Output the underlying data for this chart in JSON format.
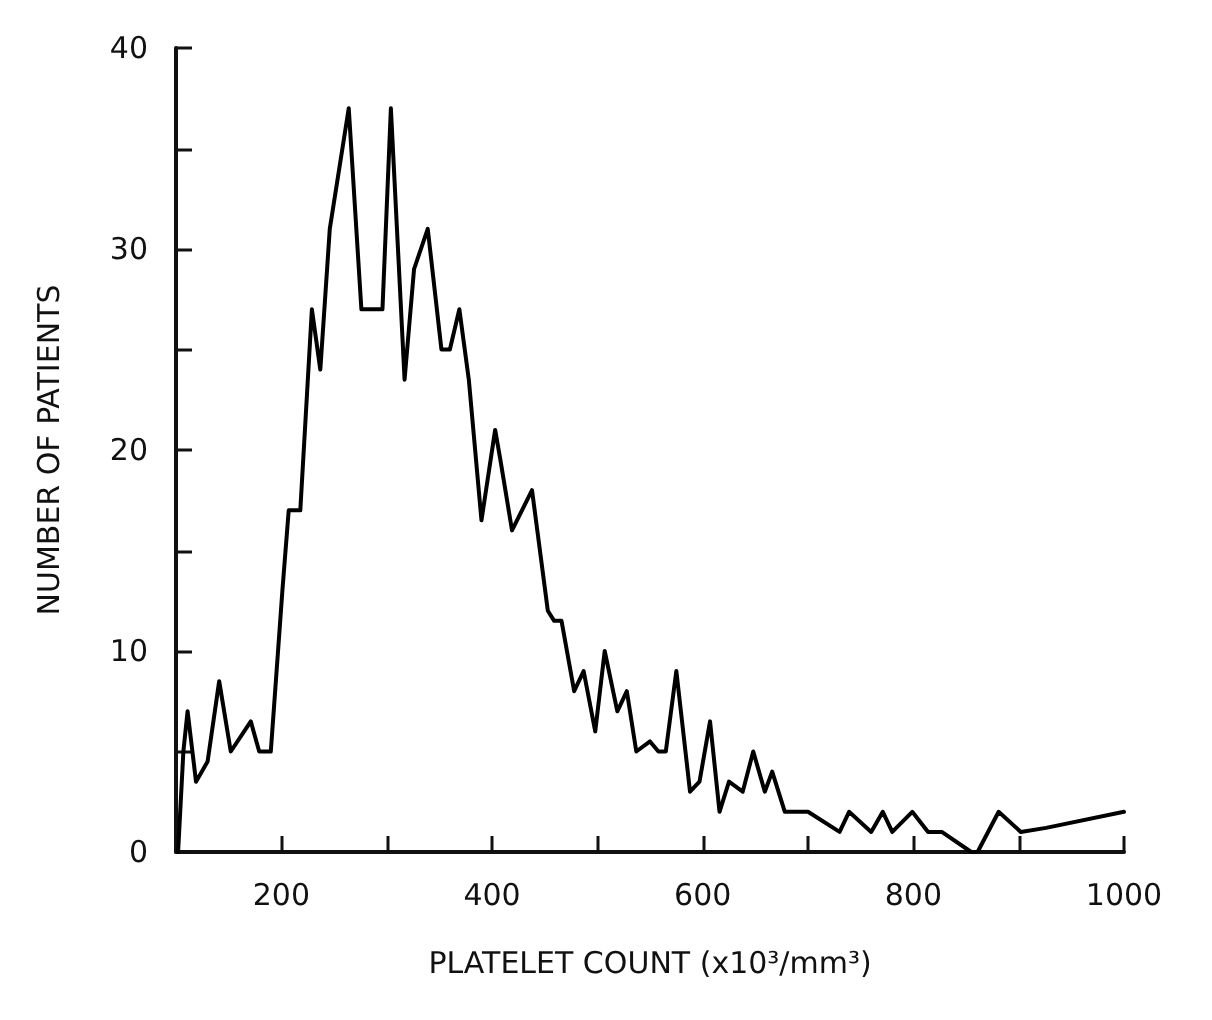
{
  "chart_data": {
    "type": "line",
    "xlabel": "PLATELET COUNT (x10³/mm³)",
    "ylabel": "NUMBER OF PATIENTS",
    "x": [
      102,
      107,
      111,
      119,
      130,
      141,
      152,
      171,
      179,
      190,
      201,
      207,
      218,
      229,
      237,
      246,
      264,
      276,
      296,
      304,
      317,
      326,
      339,
      352,
      360,
      369,
      378,
      390,
      403,
      408,
      419,
      438,
      453,
      459,
      466,
      478,
      487,
      498,
      507,
      519,
      528,
      537,
      550,
      558,
      565,
      575,
      588,
      597,
      607,
      616,
      625,
      638,
      648,
      659,
      666,
      678,
      700,
      730,
      739,
      760,
      771,
      780,
      799,
      814,
      827,
      855,
      861,
      881,
      902,
      926,
      1000
    ],
    "series": [
      {
        "color": "#000000",
        "values": [
          0,
          5,
          7,
          3.5,
          4.5,
          8.5,
          5,
          6.5,
          5,
          5,
          13,
          17,
          17,
          27,
          24,
          31,
          37,
          27,
          27,
          37,
          23.5,
          29,
          31,
          25,
          25,
          27,
          23.5,
          16.5,
          21,
          19.5,
          16,
          18,
          12,
          11.5,
          11.5,
          8,
          9,
          6,
          10,
          7,
          8,
          5,
          5.5,
          5,
          5,
          9,
          3,
          3.5,
          6.5,
          2,
          3.5,
          3,
          5,
          3,
          4,
          2,
          2,
          1,
          2,
          1,
          2,
          1,
          2,
          1,
          1,
          0,
          0,
          2,
          1,
          1.2,
          2
        ]
      }
    ],
    "xlim": [
      100,
      1000
    ],
    "ylim": [
      0,
      40
    ],
    "xticks": [
      200,
      {
        "value": 300,
        "label": null
      },
      400,
      {
        "value": 500,
        "label": null
      },
      600,
      {
        "value": 700,
        "label": null
      },
      800,
      {
        "value": 900,
        "label": null
      },
      1000
    ],
    "yticks": [
      0,
      {
        "value": 5,
        "label": null
      },
      10,
      {
        "value": 15,
        "label": null
      },
      20,
      {
        "value": 25,
        "label": null
      },
      30,
      {
        "value": 35,
        "label": null
      },
      40
    ],
    "grid": false,
    "marker": "none",
    "line_style": "solid"
  }
}
